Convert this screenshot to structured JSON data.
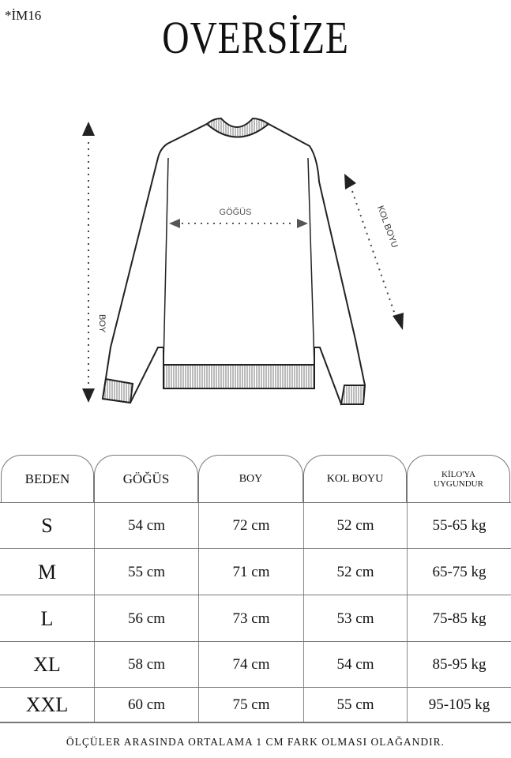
{
  "code": "*İM16",
  "title": "OVERSİZE",
  "diagram": {
    "chest_label": "GÖĞÜS",
    "length_label": "BOY",
    "sleeve_label": "KOL BOYU"
  },
  "table": {
    "headers": [
      "BEDEN",
      "GÖĞÜS",
      "BOY",
      "KOL BOYU",
      "KİLO'YA UYGUNDUR"
    ],
    "headers_kilo_line1": "KİLO'YA",
    "headers_kilo_line2": "UYGUNDUR",
    "rows": [
      [
        "S",
        "54 cm",
        "72 cm",
        "52  cm",
        "55-65 kg"
      ],
      [
        "M",
        "55 cm",
        "71 cm",
        "52 cm",
        "65-75 kg"
      ],
      [
        "L",
        "56 cm",
        "73 cm",
        "53 cm",
        "75-85 kg"
      ],
      [
        "XL",
        "58 cm",
        "74 cm",
        "54 cm",
        "85-95 kg"
      ],
      [
        "XXL",
        "60 cm",
        "75 cm",
        "55 cm",
        "95-105 kg"
      ]
    ]
  },
  "footer": "ÖLÇÜLER ARASINDA ORTALAMA 1 CM FARK OLMASI OLAĞANDIR."
}
